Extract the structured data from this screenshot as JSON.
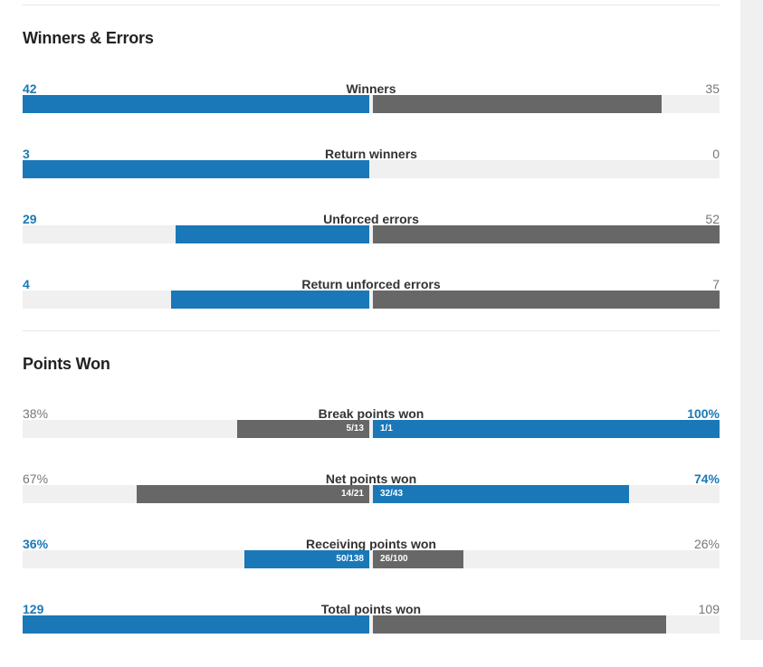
{
  "sections": [
    {
      "title": "Winners & Errors",
      "rows": [
        {
          "label": "Winners",
          "left": "42",
          "right": "35",
          "left_frac": 1.0,
          "right_frac": 0.833,
          "lead": "left"
        },
        {
          "label": "Return winners",
          "left": "3",
          "right": "0",
          "left_frac": 1.0,
          "right_frac": 0.0,
          "lead": "left"
        },
        {
          "label": "Unforced errors",
          "left": "29",
          "right": "52",
          "left_frac": 0.558,
          "right_frac": 1.0,
          "lead": "left"
        },
        {
          "label": "Return unforced errors",
          "left": "4",
          "right": "7",
          "left_frac": 0.571,
          "right_frac": 1.0,
          "lead": "left"
        }
      ]
    },
    {
      "title": "Points Won",
      "rows": [
        {
          "label": "Break points won",
          "left": "38%",
          "right": "100%",
          "left_frac": 0.38,
          "right_frac": 1.0,
          "lead": "right",
          "left_detail": "5/13",
          "right_detail": "1/1"
        },
        {
          "label": "Net points won",
          "left": "67%",
          "right": "74%",
          "left_frac": 0.67,
          "right_frac": 0.74,
          "lead": "right",
          "left_detail": "14/21",
          "right_detail": "32/43"
        },
        {
          "label": "Receiving points won",
          "left": "36%",
          "right": "26%",
          "left_frac": 0.36,
          "right_frac": 0.26,
          "lead": "left",
          "left_detail": "50/138",
          "right_detail": "26/100"
        },
        {
          "label": "Total points won",
          "left": "129",
          "right": "109",
          "left_frac": 1.0,
          "right_frac": 0.845,
          "lead": "left"
        }
      ]
    }
  ],
  "colors": {
    "lead": "#1a78b8",
    "other": "#676767",
    "track": "#f0f0f0"
  }
}
